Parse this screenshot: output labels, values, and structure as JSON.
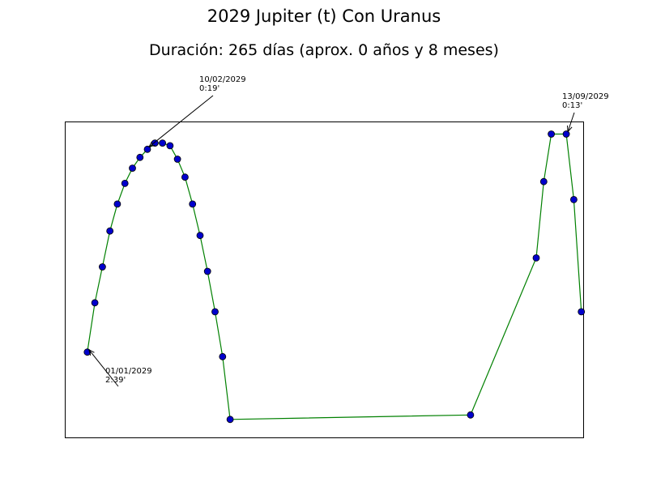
{
  "chart_data": {
    "type": "line",
    "title": "2029 Jupiter (t) Con Uranus",
    "subtitle": "Duración: 265 días (aprox. 0 años y 8 meses)",
    "xlabel": "",
    "ylabel": "",
    "grid": false,
    "axes_ticks_shown": false,
    "series": [
      {
        "color": "#008000",
        "marker_color": "#0000cc",
        "x": [
          "2029-01-01",
          "2029-01-05",
          "2029-01-09",
          "2029-01-13",
          "2029-01-17",
          "2029-01-21",
          "2029-01-25",
          "2029-01-29",
          "2029-02-02",
          "2029-02-06",
          "2029-02-10",
          "2029-02-14",
          "2029-02-18",
          "2029-02-22",
          "2029-02-26",
          "2029-03-02",
          "2029-03-06",
          "2029-03-10",
          "2029-03-14",
          "2029-03-18",
          "2029-07-24",
          "2029-08-28",
          "2029-09-01",
          "2029-09-05",
          "2029-09-13",
          "2029-09-17",
          "2029-09-21"
        ],
        "y": [
          2.65,
          2.1,
          1.7,
          1.3,
          1.0,
          0.77,
          0.6,
          0.48,
          0.39,
          0.32,
          0.32,
          0.35,
          0.5,
          0.7,
          1.0,
          1.35,
          1.75,
          2.2,
          2.7,
          3.4,
          3.35,
          1.6,
          0.75,
          0.22,
          0.22,
          0.95,
          2.2
        ]
      }
    ],
    "annotations": [
      {
        "date": "01/01/2029",
        "value": "2:39'"
      },
      {
        "date": "10/02/2029",
        "value": "0:19'"
      },
      {
        "date": "13/09/2029",
        "value": "0:13'"
      }
    ]
  }
}
